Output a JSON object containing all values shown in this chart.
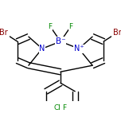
{
  "bg_color": "#ffffff",
  "figsize": [
    1.52,
    1.52
  ],
  "dpi": 100,
  "bond_color": "#000000",
  "atom_colors": {
    "B": "#0000cc",
    "N": "#0000cc",
    "F": "#008800",
    "Br": "#880000",
    "Cl": "#008800",
    "C": "#000000"
  },
  "bond_width": 1.0,
  "font_size": 7.0
}
